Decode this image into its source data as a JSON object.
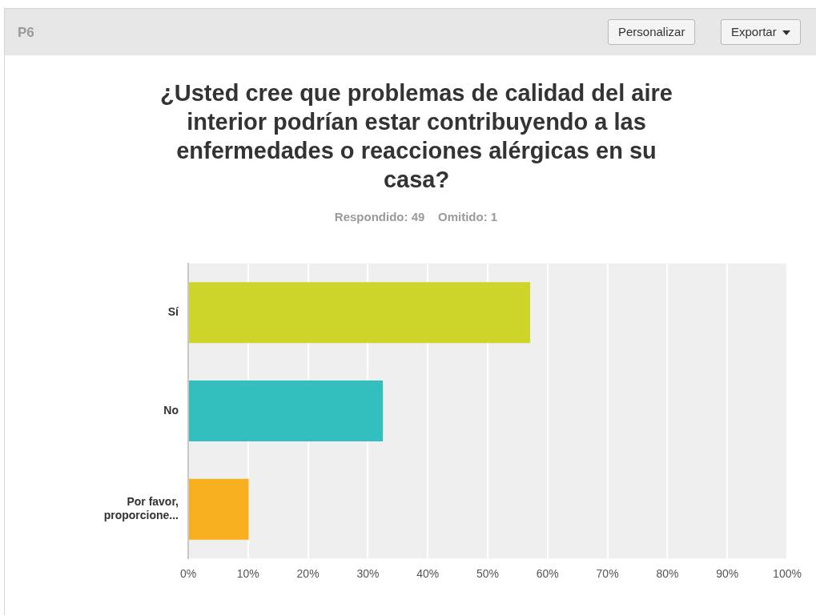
{
  "chart_data": {
    "type": "bar",
    "orientation": "horizontal",
    "title": "¿Usted cree que problemas de calidad del aire interior podrían estar contribuyendo a las enfermedades o reacciones alérgicas en su casa?",
    "subtitle": "Respondido: 49    Omitido: 1",
    "annotations": [
      "P6",
      "Personalizar",
      "Exportar"
    ],
    "categories": [
      "Sí",
      "No",
      "Por favor, proporcione..."
    ],
    "values": [
      57.1,
      32.5,
      10.1
    ],
    "colors": [
      "#cdd42a",
      "#33bec0",
      "#f7ae1f"
    ],
    "xlim": [
      0,
      100
    ],
    "xticks": [
      {
        "value": 0,
        "label": "0%"
      },
      {
        "value": 10,
        "label": "10%"
      },
      {
        "value": 20,
        "label": "20%"
      },
      {
        "value": 30,
        "label": "30%"
      },
      {
        "value": 40,
        "label": "40%"
      },
      {
        "value": 50,
        "label": "50%"
      },
      {
        "value": 60,
        "label": "60%"
      },
      {
        "value": 70,
        "label": "70%"
      },
      {
        "value": 80,
        "label": "80%"
      },
      {
        "value": 90,
        "label": "90%"
      },
      {
        "value": 100,
        "label": "100%"
      }
    ],
    "grid": "x",
    "legend": false
  }
}
